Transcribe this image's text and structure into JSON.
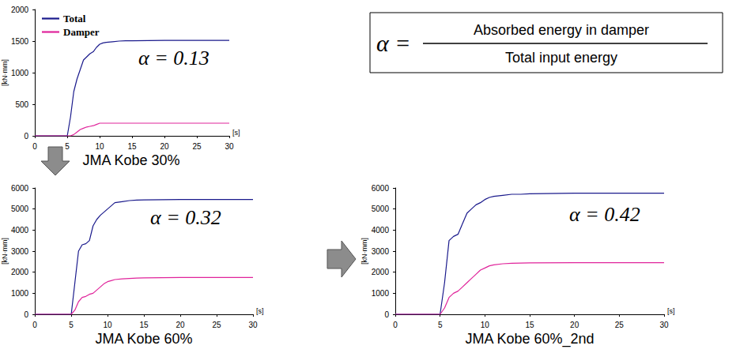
{
  "formula": {
    "lhs": "α =",
    "numerator": "Absorbed energy in damper",
    "denominator": "Total input energy"
  },
  "chart_data": [
    {
      "type": "line",
      "title": "JMA Kobe 30%",
      "annotation": "α = 0.13",
      "xlabel": "[s]",
      "ylabel": "[kN·mm]",
      "x": [
        0,
        5,
        5.5,
        6,
        6.5,
        7,
        7.5,
        8,
        8.5,
        9,
        9.5,
        10,
        10.5,
        11,
        12,
        13,
        14,
        15,
        20,
        25,
        30
      ],
      "series": [
        {
          "name": "Total",
          "color": "#1a1a8c",
          "values": [
            0,
            0,
            300,
            700,
            900,
            1050,
            1200,
            1250,
            1300,
            1330,
            1400,
            1450,
            1470,
            1480,
            1490,
            1500,
            1505,
            1505,
            1510,
            1510,
            1510
          ]
        },
        {
          "name": "Damper",
          "color": "#e0249b",
          "values": [
            0,
            0,
            0,
            20,
            60,
            100,
            120,
            140,
            150,
            160,
            180,
            200,
            200,
            200,
            200,
            200,
            200,
            200,
            200,
            200,
            200
          ]
        }
      ],
      "xlim": [
        0,
        30
      ],
      "xticks": [
        0,
        5,
        10,
        15,
        20,
        25,
        30
      ],
      "ylim": [
        0,
        2000
      ],
      "yticks": [
        0,
        500,
        1000,
        1500,
        2000
      ],
      "grid": false,
      "legend": "upper left"
    },
    {
      "type": "line",
      "title": "JMA Kobe 60%",
      "annotation": "α = 0.32",
      "xlabel": "[s]",
      "ylabel": "[kN·mm]",
      "x": [
        0,
        5,
        5.5,
        6,
        6.5,
        7,
        7.5,
        8,
        8.5,
        9,
        9.5,
        10,
        10.5,
        11,
        12,
        13,
        14,
        15,
        20,
        25,
        30
      ],
      "series": [
        {
          "color": "#1a1a8c",
          "values": [
            0,
            0,
            1500,
            3000,
            3300,
            3350,
            3500,
            4200,
            4500,
            4700,
            4850,
            5000,
            5150,
            5300,
            5350,
            5400,
            5420,
            5430,
            5450,
            5450,
            5450
          ]
        },
        {
          "color": "#e0249b",
          "values": [
            0,
            0,
            200,
            600,
            800,
            850,
            950,
            1000,
            1150,
            1300,
            1450,
            1550,
            1600,
            1650,
            1680,
            1700,
            1720,
            1730,
            1750,
            1750,
            1750
          ]
        }
      ],
      "xlim": [
        0,
        30
      ],
      "xticks": [
        0,
        5,
        10,
        15,
        20,
        25,
        30
      ],
      "ylim": [
        0,
        6000
      ],
      "yticks": [
        0,
        1000,
        2000,
        3000,
        4000,
        5000,
        6000
      ],
      "grid": false
    },
    {
      "type": "line",
      "title": "JMA Kobe 60%_2nd",
      "annotation": "α = 0.42",
      "xlabel": "[s]",
      "ylabel": "[kN·mm]",
      "x": [
        0,
        5,
        5.5,
        6,
        6.5,
        7,
        7.5,
        8,
        8.5,
        9,
        9.5,
        10,
        10.5,
        11,
        12,
        13,
        14,
        15,
        20,
        25,
        30
      ],
      "series": [
        {
          "color": "#1a1a8c",
          "values": [
            0,
            0,
            1500,
            3500,
            3700,
            3800,
            4300,
            4800,
            5000,
            5200,
            5300,
            5450,
            5550,
            5600,
            5650,
            5700,
            5700,
            5720,
            5750,
            5750,
            5750
          ]
        },
        {
          "color": "#e0249b",
          "values": [
            0,
            0,
            300,
            800,
            1000,
            1100,
            1300,
            1500,
            1700,
            1900,
            2100,
            2200,
            2300,
            2350,
            2400,
            2420,
            2430,
            2440,
            2450,
            2450,
            2450
          ]
        }
      ],
      "xlim": [
        0,
        30
      ],
      "xticks": [
        0,
        5,
        10,
        15,
        20,
        25,
        30
      ],
      "ylim": [
        0,
        6000
      ],
      "yticks": [
        0,
        1000,
        2000,
        3000,
        4000,
        5000,
        6000
      ],
      "grid": false
    }
  ]
}
